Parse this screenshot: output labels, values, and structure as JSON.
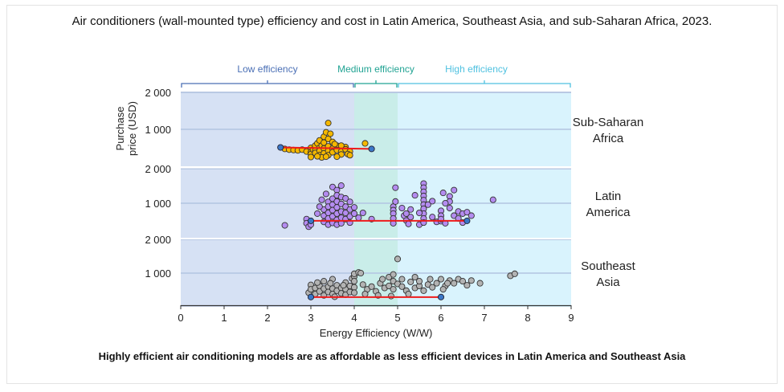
{
  "title": "Air conditioners (wall-mounted type) efficiency and cost in Latin America, Southeast Asia, and sub-Saharan Africa, 2023.",
  "footer": "Highly efficient air conditioning models are as affordable as less efficient devices in Latin America and Southeast Asia",
  "chart_data": {
    "type": "scatter",
    "title": "Air conditioners (wall-mounted type) efficiency and cost in Latin America, Southeast Asia, and sub-Saharan Africa, 2023.",
    "xlabel": "Energy Efficiency (W/W)",
    "ylabel": "Purchase price (USD)",
    "xlim": [
      0,
      9
    ],
    "xticks": [
      "0",
      "1",
      "2",
      "3",
      "4",
      "5",
      "6",
      "7",
      "8",
      "9"
    ],
    "ylim": [
      0,
      2000
    ],
    "yticks": [
      {
        "value": 1000,
        "label": "1 000"
      },
      {
        "value": 2000,
        "label": "2 000"
      }
    ],
    "grid": "horizontal at 1000",
    "efficiency_bands": [
      {
        "name": "Low efficiency",
        "from": 0,
        "to": 4,
        "color": "#d6e1f4",
        "label_color": "#4a6fb5"
      },
      {
        "name": "Medium efficiency",
        "from": 4,
        "to": 5,
        "color": "#c9ede9",
        "label_color": "#21a393"
      },
      {
        "name": "High efficiency",
        "from": 5,
        "to": 9,
        "color": "#d9f3fd",
        "label_color": "#4fc1e0"
      }
    ],
    "panels": [
      {
        "name": "Sub-Saharan Africa",
        "label_lines": [
          "Sub-Saharan",
          "Africa"
        ],
        "point_color": "#f5b800",
        "trend_line": {
          "x": [
            2.3,
            4.4
          ],
          "y": [
            510,
            470
          ],
          "color": "#ee1c1c",
          "endpoint_color": "#3b78c8"
        },
        "points": [
          [
            2.4,
            470
          ],
          [
            2.5,
            450
          ],
          [
            2.6,
            440
          ],
          [
            2.7,
            430
          ],
          [
            2.8,
            450
          ],
          [
            2.9,
            400
          ],
          [
            3.0,
            500
          ],
          [
            3.0,
            380
          ],
          [
            3.0,
            330
          ],
          [
            3.05,
            450
          ],
          [
            3.1,
            560
          ],
          [
            3.1,
            420
          ],
          [
            3.1,
            360
          ],
          [
            3.15,
            620
          ],
          [
            3.2,
            700
          ],
          [
            3.2,
            500
          ],
          [
            3.2,
            420
          ],
          [
            3.2,
            300
          ],
          [
            3.25,
            560
          ],
          [
            3.3,
            800
          ],
          [
            3.3,
            640
          ],
          [
            3.3,
            480
          ],
          [
            3.3,
            350
          ],
          [
            3.35,
            920
          ],
          [
            3.4,
            1170
          ],
          [
            3.4,
            740
          ],
          [
            3.4,
            540
          ],
          [
            3.4,
            420
          ],
          [
            3.4,
            300
          ],
          [
            3.5,
            660
          ],
          [
            3.5,
            480
          ],
          [
            3.5,
            380
          ],
          [
            3.6,
            560
          ],
          [
            3.6,
            440
          ],
          [
            3.7,
            400
          ],
          [
            3.7,
            320
          ],
          [
            3.8,
            520
          ],
          [
            3.8,
            460
          ],
          [
            3.9,
            400
          ],
          [
            3.85,
            330
          ],
          [
            3.25,
            240
          ],
          [
            3.0,
            250
          ],
          [
            3.6,
            260
          ],
          [
            3.35,
            260
          ],
          [
            3.15,
            270
          ],
          [
            4.25,
            620
          ],
          [
            3.9,
            300
          ],
          [
            3.7,
            560
          ],
          [
            3.55,
            600
          ],
          [
            3.45,
            880
          ]
        ]
      },
      {
        "name": "Latin America",
        "label_lines": [
          "Latin",
          "America"
        ],
        "point_color": "#b48cf0",
        "trend_line": {
          "x": [
            3.0,
            6.6
          ],
          "y": [
            490,
            490
          ],
          "color": "#ee1c1c",
          "endpoint_color": "#3b78c8"
        },
        "points": [
          [
            2.4,
            360
          ],
          [
            2.9,
            540
          ],
          [
            2.9,
            420
          ],
          [
            2.95,
            320
          ],
          [
            3.0,
            480
          ],
          [
            3.0,
            380
          ],
          [
            3.3,
            820
          ],
          [
            3.3,
            640
          ],
          [
            3.3,
            460
          ],
          [
            3.35,
            1270
          ],
          [
            3.4,
            1040
          ],
          [
            3.4,
            900
          ],
          [
            3.4,
            720
          ],
          [
            3.4,
            560
          ],
          [
            3.4,
            380
          ],
          [
            3.5,
            1470
          ],
          [
            3.5,
            1130
          ],
          [
            3.5,
            960
          ],
          [
            3.5,
            800
          ],
          [
            3.5,
            620
          ],
          [
            3.5,
            430
          ],
          [
            3.6,
            1380
          ],
          [
            3.6,
            1230
          ],
          [
            3.6,
            1050
          ],
          [
            3.6,
            880
          ],
          [
            3.6,
            700
          ],
          [
            3.6,
            520
          ],
          [
            3.6,
            380
          ],
          [
            3.7,
            1510
          ],
          [
            3.7,
            1180
          ],
          [
            3.7,
            980
          ],
          [
            3.7,
            760
          ],
          [
            3.7,
            580
          ],
          [
            3.7,
            420
          ],
          [
            3.8,
            1140
          ],
          [
            3.8,
            900
          ],
          [
            3.8,
            720
          ],
          [
            3.8,
            540
          ],
          [
            3.9,
            1040
          ],
          [
            3.9,
            820
          ],
          [
            3.9,
            620
          ],
          [
            3.9,
            440
          ],
          [
            4.0,
            880
          ],
          [
            4.0,
            700
          ],
          [
            4.1,
            580
          ],
          [
            4.2,
            720
          ],
          [
            4.4,
            540
          ],
          [
            3.2,
            900
          ],
          [
            3.15,
            700
          ],
          [
            3.25,
            1100
          ],
          [
            4.95,
            1450
          ],
          [
            4.9,
            900
          ],
          [
            4.9,
            800
          ],
          [
            4.9,
            700
          ],
          [
            4.9,
            560
          ],
          [
            4.9,
            420
          ],
          [
            4.95,
            1050
          ],
          [
            5.1,
            860
          ],
          [
            5.15,
            640
          ],
          [
            5.2,
            500
          ],
          [
            5.25,
            400
          ],
          [
            5.3,
            600
          ],
          [
            5.4,
            1230
          ],
          [
            5.5,
            380
          ],
          [
            5.6,
            1570
          ],
          [
            5.6,
            1450
          ],
          [
            5.6,
            1330
          ],
          [
            5.6,
            1210
          ],
          [
            5.6,
            1090
          ],
          [
            5.6,
            960
          ],
          [
            5.6,
            840
          ],
          [
            5.6,
            700
          ],
          [
            5.6,
            560
          ],
          [
            5.6,
            440
          ],
          [
            5.5,
            720
          ],
          [
            5.7,
            960
          ],
          [
            5.8,
            1060
          ],
          [
            5.9,
            460
          ],
          [
            6.0,
            480
          ],
          [
            6.0,
            780
          ],
          [
            6.0,
            640
          ],
          [
            6.0,
            540
          ],
          [
            6.1,
            420
          ],
          [
            6.2,
            1200
          ],
          [
            6.2,
            1050
          ],
          [
            6.2,
            860
          ],
          [
            6.3,
            640
          ],
          [
            6.4,
            560
          ],
          [
            6.4,
            760
          ],
          [
            6.5,
            700
          ],
          [
            6.6,
            740
          ],
          [
            6.7,
            640
          ],
          [
            7.2,
            1100
          ],
          [
            5.3,
            820
          ],
          [
            5.8,
            600
          ],
          [
            6.1,
            1000
          ],
          [
            6.3,
            1380
          ],
          [
            6.5,
            440
          ],
          [
            5.2,
            700
          ],
          [
            6.05,
            1300
          ]
        ]
      },
      {
        "name": "Southeast Asia",
        "label_lines": [
          "Southeast",
          "Asia"
        ],
        "point_color": "#b3b3b3",
        "trend_line": {
          "x": [
            3.0,
            6.0
          ],
          "y": [
            290,
            290
          ],
          "color": "#ee1c1c",
          "endpoint_color": "#3b78c8"
        },
        "points": [
          [
            2.95,
            420
          ],
          [
            3.0,
            650
          ],
          [
            3.0,
            520
          ],
          [
            3.1,
            380
          ],
          [
            3.1,
            560
          ],
          [
            3.2,
            620
          ],
          [
            3.2,
            460
          ],
          [
            3.3,
            760
          ],
          [
            3.3,
            540
          ],
          [
            3.3,
            340
          ],
          [
            3.4,
            600
          ],
          [
            3.4,
            440
          ],
          [
            3.5,
            820
          ],
          [
            3.5,
            540
          ],
          [
            3.5,
            380
          ],
          [
            3.6,
            640
          ],
          [
            3.6,
            480
          ],
          [
            3.7,
            560
          ],
          [
            3.7,
            400
          ],
          [
            3.8,
            720
          ],
          [
            3.8,
            520
          ],
          [
            3.8,
            360
          ],
          [
            3.9,
            620
          ],
          [
            3.9,
            440
          ],
          [
            3.95,
            840
          ],
          [
            4.0,
            900
          ],
          [
            4.0,
            980
          ],
          [
            4.0,
            760
          ],
          [
            4.0,
            580
          ],
          [
            4.0,
            420
          ],
          [
            4.1,
            1020
          ],
          [
            4.15,
            1000
          ],
          [
            4.2,
            660
          ],
          [
            4.3,
            520
          ],
          [
            4.4,
            600
          ],
          [
            4.5,
            460
          ],
          [
            4.6,
            700
          ],
          [
            4.7,
            560
          ],
          [
            4.8,
            880
          ],
          [
            4.8,
            620
          ],
          [
            4.9,
            960
          ],
          [
            4.9,
            760
          ],
          [
            4.9,
            520
          ],
          [
            5.0,
            1420
          ],
          [
            5.0,
            680
          ],
          [
            5.1,
            820
          ],
          [
            5.1,
            600
          ],
          [
            5.2,
            480
          ],
          [
            5.3,
            740
          ],
          [
            5.4,
            560
          ],
          [
            5.4,
            880
          ],
          [
            5.5,
            620
          ],
          [
            5.5,
            760
          ],
          [
            5.6,
            480
          ],
          [
            5.7,
            660
          ],
          [
            5.8,
            580
          ],
          [
            5.9,
            700
          ],
          [
            6.0,
            820
          ],
          [
            6.1,
            620
          ],
          [
            6.2,
            780
          ],
          [
            6.3,
            700
          ],
          [
            6.4,
            820
          ],
          [
            6.5,
            760
          ],
          [
            6.6,
            640
          ],
          [
            6.7,
            780
          ],
          [
            6.9,
            700
          ],
          [
            7.6,
            920
          ],
          [
            7.7,
            980
          ],
          [
            3.15,
            720
          ],
          [
            3.45,
            700
          ],
          [
            3.75,
            640
          ],
          [
            4.25,
            380
          ],
          [
            4.55,
            340
          ],
          [
            4.65,
            820
          ],
          [
            5.25,
            380
          ],
          [
            5.75,
            820
          ],
          [
            6.05,
            520
          ],
          [
            6.15,
            700
          ],
          [
            3.55,
            300
          ],
          [
            4.85,
            320
          ]
        ]
      }
    ]
  }
}
